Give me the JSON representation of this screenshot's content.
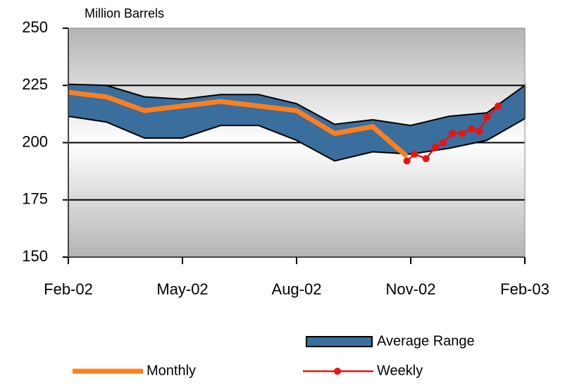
{
  "chart_data": {
    "type": "line",
    "subtitle": "Million Barrels",
    "xlim": [
      0,
      12
    ],
    "xticks": [
      {
        "value": 0,
        "label": "Feb-02"
      },
      {
        "value": 3,
        "label": "May-02"
      },
      {
        "value": 6,
        "label": "Aug-02"
      },
      {
        "value": 9,
        "label": "Nov-02"
      },
      {
        "value": 12,
        "label": "Feb-03"
      }
    ],
    "ylim": [
      150,
      250
    ],
    "yticks": [
      150,
      175,
      200,
      225,
      250
    ],
    "grid": true,
    "series": [
      {
        "name": "Average Range",
        "kind": "band",
        "color": "#3a6e9c",
        "x": [
          0,
          1,
          2,
          3,
          4,
          5,
          6,
          7,
          8,
          9,
          10,
          11,
          12
        ],
        "high": [
          225.5,
          225,
          220,
          219,
          221,
          221,
          217,
          208,
          210,
          207.5,
          211.5,
          213,
          225
        ],
        "low": [
          211.5,
          209,
          202,
          202,
          207.5,
          207.5,
          201,
          192,
          196,
          195,
          197.5,
          201,
          210.5
        ]
      },
      {
        "name": "Monthly",
        "kind": "line",
        "color": "#ff7f1e",
        "x": [
          0,
          1,
          2,
          3,
          4,
          5,
          6,
          7,
          8,
          8.9
        ],
        "values": [
          222,
          220,
          214,
          216,
          218,
          216,
          214,
          204,
          207,
          194
        ]
      },
      {
        "name": "Weekly",
        "kind": "line",
        "color": "#ee1111",
        "markers": true,
        "x": [
          8.9,
          9.1,
          9.4,
          9.65,
          9.85,
          10.1,
          10.35,
          10.6,
          10.8,
          11.0,
          11.3
        ],
        "values": [
          192,
          195,
          193,
          198,
          200,
          204,
          204,
          206,
          205,
          211,
          216
        ]
      }
    ]
  }
}
